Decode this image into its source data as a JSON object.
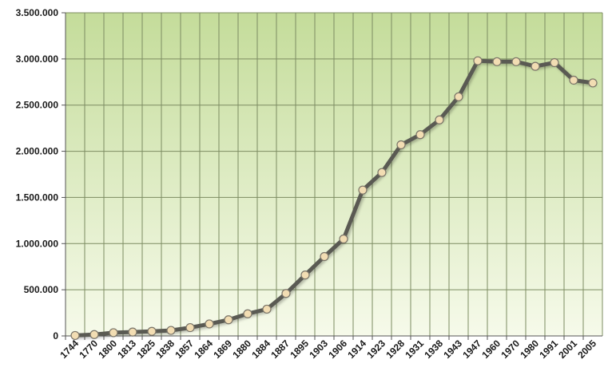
{
  "chart_data": {
    "type": "line",
    "title": "",
    "xlabel": "",
    "ylabel": "",
    "categories": [
      "1744",
      "1770",
      "1800",
      "1813",
      "1825",
      "1838",
      "1857",
      "1864",
      "1869",
      "1880",
      "1884",
      "1887",
      "1895",
      "1903",
      "1906",
      "1914",
      "1923",
      "1928",
      "1931",
      "1938",
      "1943",
      "1947",
      "1960",
      "1970",
      "1980",
      "1991",
      "2001",
      "2005"
    ],
    "series": [
      {
        "values": [
          5000,
          15000,
          35000,
          42000,
          50000,
          60000,
          90000,
          130000,
          175000,
          240000,
          290000,
          460000,
          660000,
          860000,
          1050000,
          1580000,
          1770000,
          2070000,
          2180000,
          2340000,
          2590000,
          2980000,
          2970000,
          2970000,
          2920000,
          2960000,
          2770000,
          2740000
        ]
      }
    ],
    "ylim": [
      0,
      3500000
    ],
    "yticks": [
      0,
      500000,
      1000000,
      1500000,
      2000000,
      2500000,
      3000000,
      3500000
    ],
    "ytick_labels": [
      "0",
      "500.000",
      "1.000.000",
      "1.500.000",
      "2.000.000",
      "2.500.000",
      "3.000.000",
      "3.500.000"
    ],
    "grid": true,
    "legend": "none",
    "colors": {
      "line": "#5a5a52",
      "marker_fill": "#f2ddb3",
      "marker_stroke": "#7a7468",
      "grid": "#7c8c62",
      "bg_top": "#c4dc9a",
      "bg_bottom": "#f6faea",
      "axis_text": "#1a1a1a"
    }
  }
}
